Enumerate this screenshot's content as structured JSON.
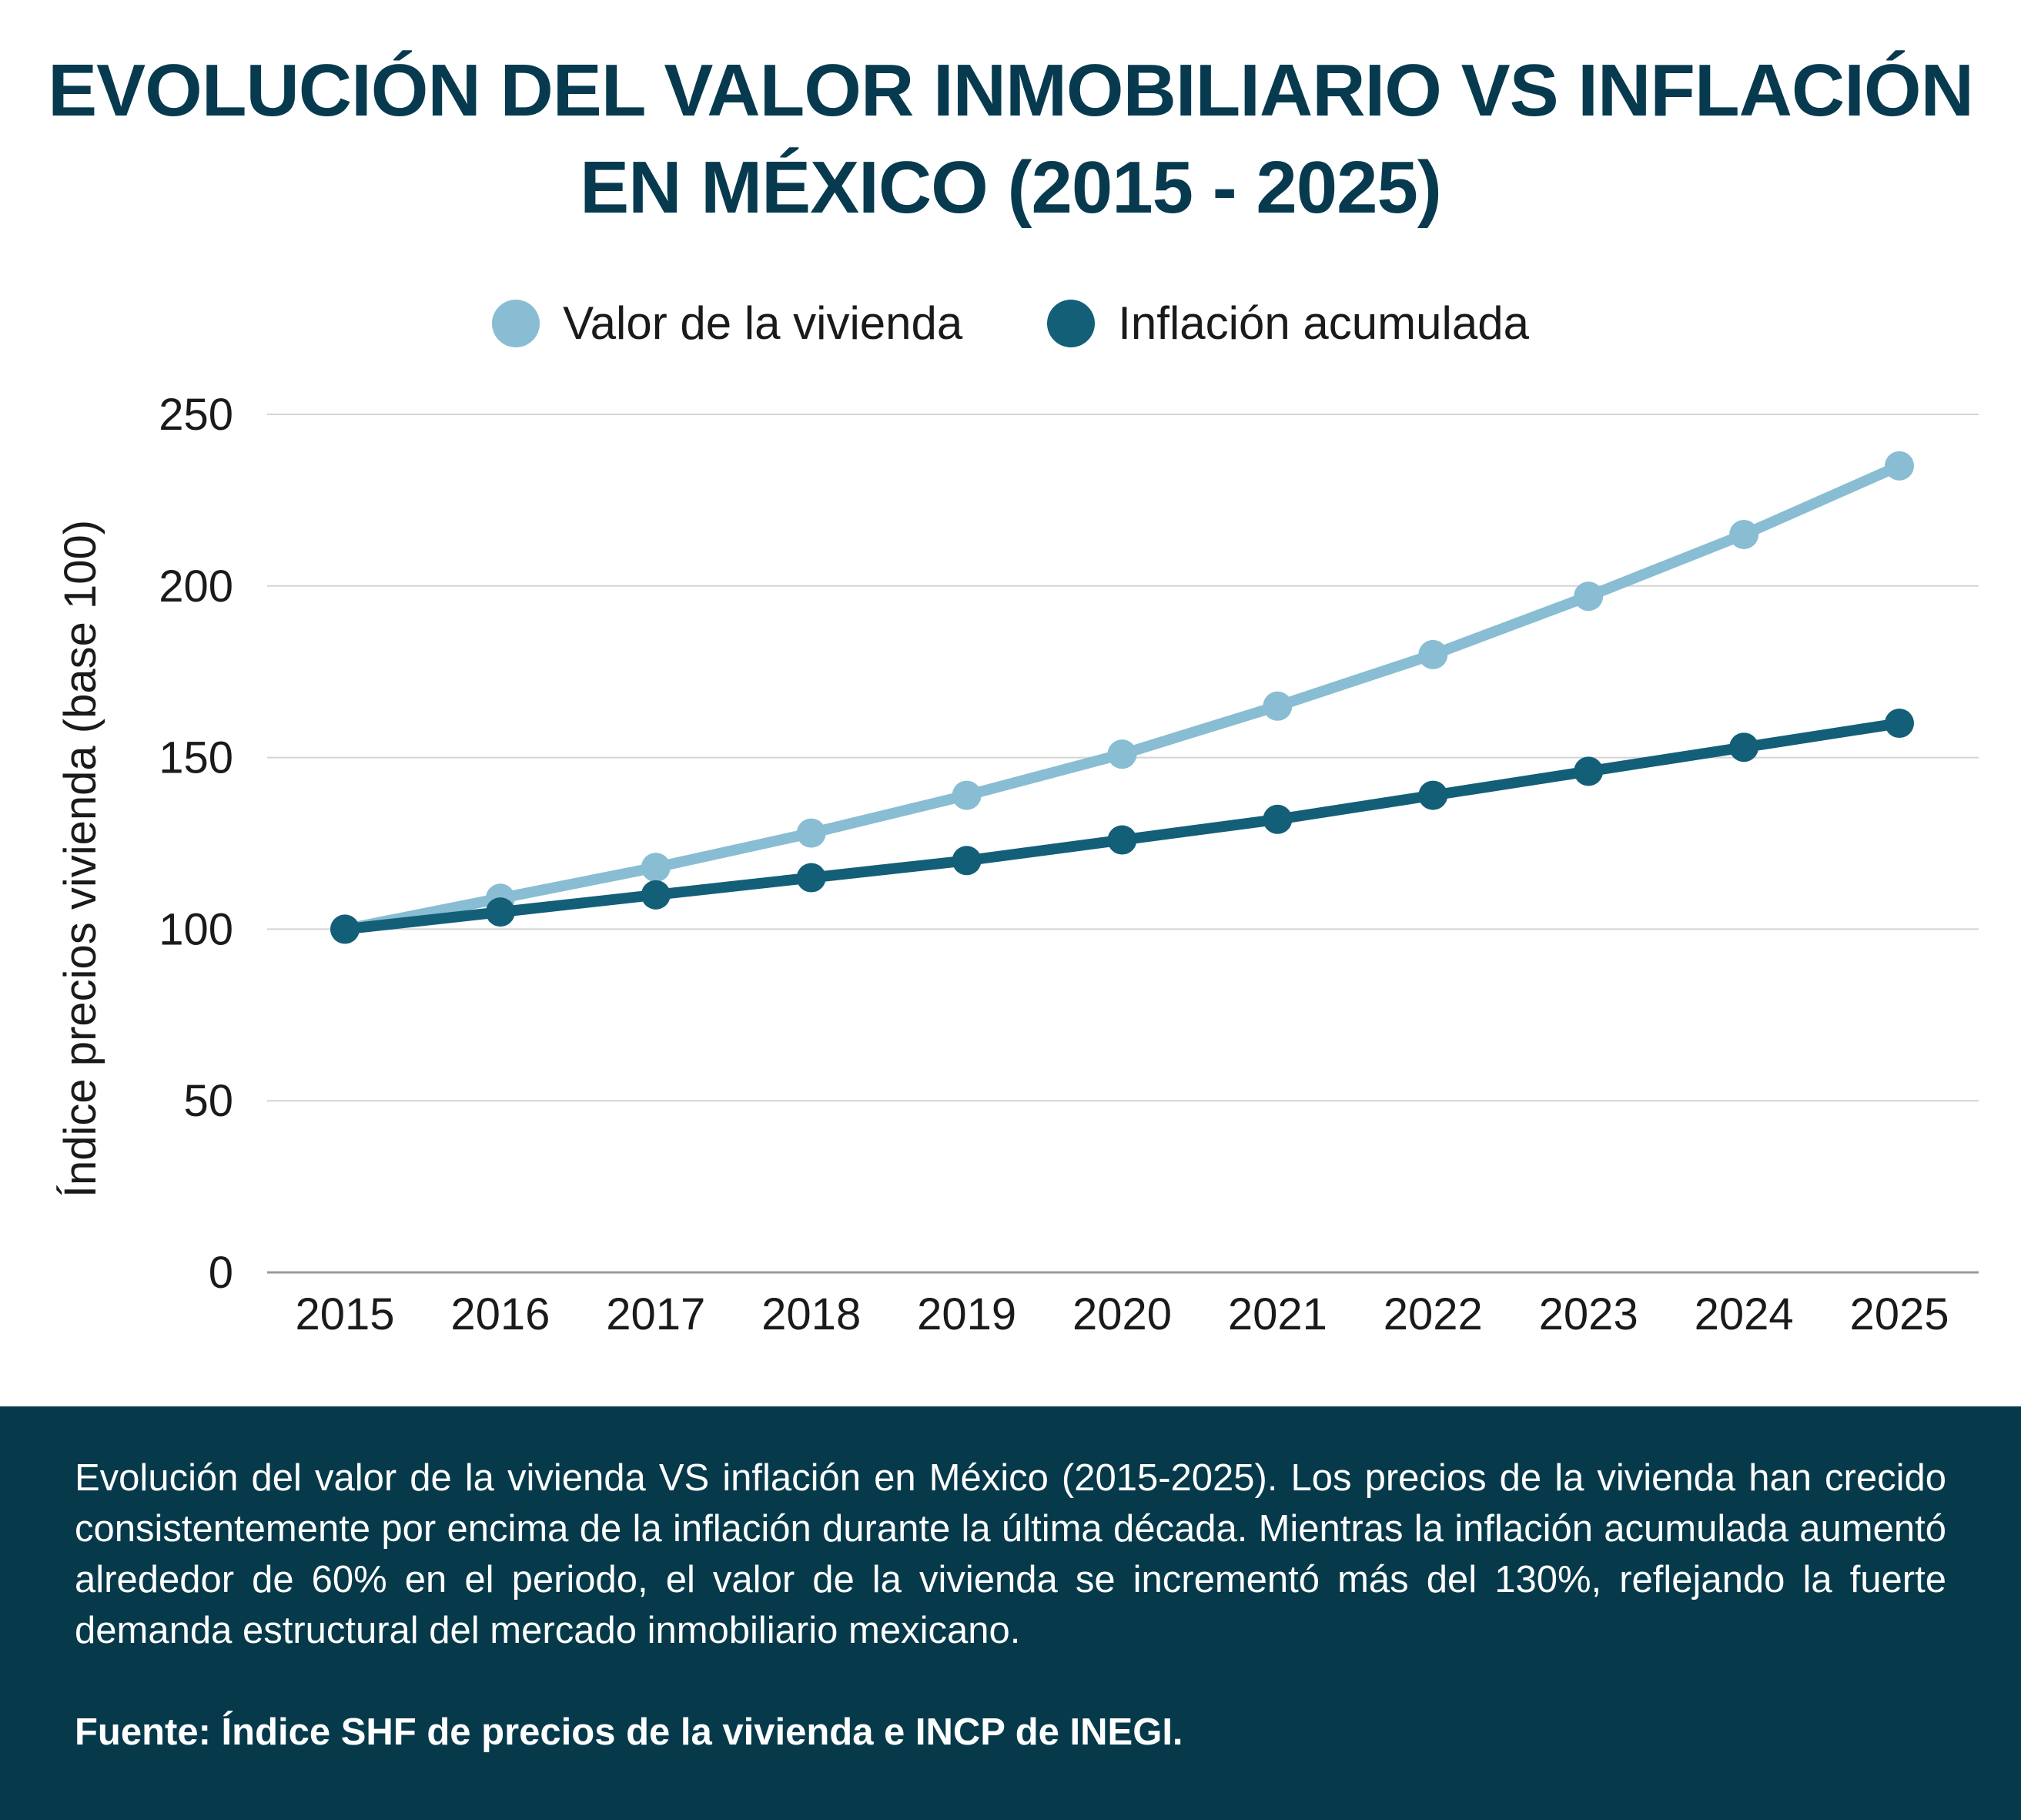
{
  "chart_data": {
    "type": "line",
    "title_line1": "EVOLUCIÓN DEL VALOR INMOBILIARIO VS INFLACIÓN",
    "title_line2": "EN MÉXICO (2015 - 2025)",
    "ylabel": "Índice precios vivienda (base 100)",
    "xlabel": "",
    "ylim": [
      0,
      250
    ],
    "yticks": [
      0,
      50,
      100,
      150,
      200,
      250
    ],
    "x": [
      "2015",
      "2016",
      "2017",
      "2018",
      "2019",
      "2020",
      "2021",
      "2022",
      "2023",
      "2024",
      "2025"
    ],
    "grid": true,
    "legend_position": "top-center",
    "series": [
      {
        "name": "Valor de la vivienda",
        "color": "#88bdd3",
        "values": [
          100,
          109,
          118,
          128,
          139,
          151,
          165,
          180,
          197,
          215,
          235
        ]
      },
      {
        "name": "Inflación acumulada",
        "color": "#135f78",
        "values": [
          100,
          105,
          110,
          115,
          120,
          126,
          132,
          139,
          146,
          153,
          160
        ]
      }
    ]
  },
  "footer": {
    "description": "Evolución del valor de la vivienda VS inflación en México (2015-2025). Los precios de la vivienda han crecido consistentemente por encima de la inflación durante la última década. Mientras la inflación acumulada aumentó alrededor de 60% en el periodo, el valor de la vivienda se incrementó más del 130%, reflejando la fuerte demanda estructural del mercado inmobiliario mexicano.",
    "source": "Fuente: Índice SHF de precios de la vivienda e INCP de INEGI."
  }
}
